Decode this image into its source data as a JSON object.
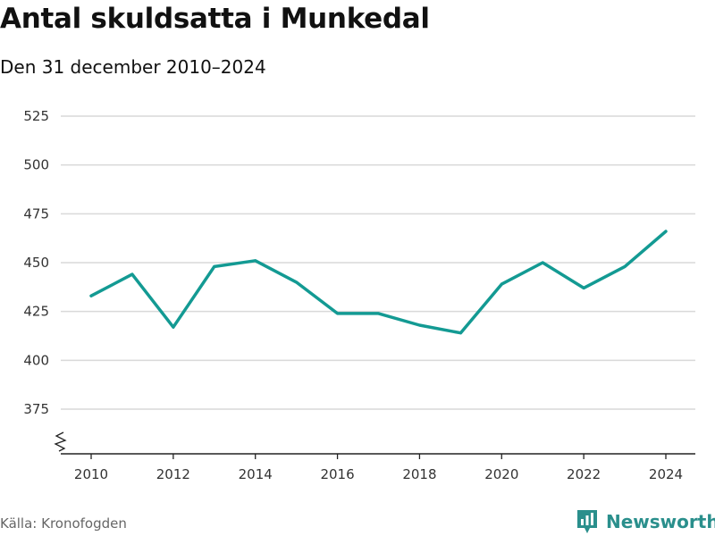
{
  "header": {
    "title": "Antal skuldsatta i Munkedal",
    "subtitle": "Den 31 december 2010–2024"
  },
  "footer": {
    "source": "Källa: Kronofogden",
    "brand": "Newsworthy"
  },
  "colors": {
    "line": "#139a93",
    "grid": "#d9d9d9",
    "brand": "#2a8f8c"
  },
  "icons": {
    "brand_logo": "newsworthy-logo-icon",
    "axis_break": "axis-break-icon"
  },
  "chart_data": {
    "type": "line",
    "title": "Antal skuldsatta i Munkedal",
    "subtitle": "Den 31 december 2010–2024",
    "xlabel": "",
    "ylabel": "",
    "x": [
      2010,
      2011,
      2012,
      2013,
      2014,
      2015,
      2016,
      2017,
      2018,
      2019,
      2020,
      2021,
      2022,
      2023,
      2024
    ],
    "series": [
      {
        "name": "Antal skuldsatta",
        "values": [
          433,
          444,
          417,
          448,
          451,
          440,
          424,
          424,
          418,
          414,
          439,
          450,
          437,
          448,
          466
        ]
      }
    ],
    "yticks": [
      375,
      400,
      425,
      450,
      475,
      500,
      525
    ],
    "ytick_labels": [
      "375",
      "400",
      "425",
      "450",
      "475",
      "500",
      "525"
    ],
    "xticks": [
      2010,
      2012,
      2014,
      2016,
      2018,
      2020,
      2022,
      2024
    ],
    "xtick_labels": [
      "2010",
      "2012",
      "2014",
      "2016",
      "2018",
      "2020",
      "2022",
      "2024"
    ],
    "ylim": [
      375,
      525
    ],
    "xlim": [
      2010,
      2024
    ],
    "grid": true,
    "axis_break": true
  }
}
